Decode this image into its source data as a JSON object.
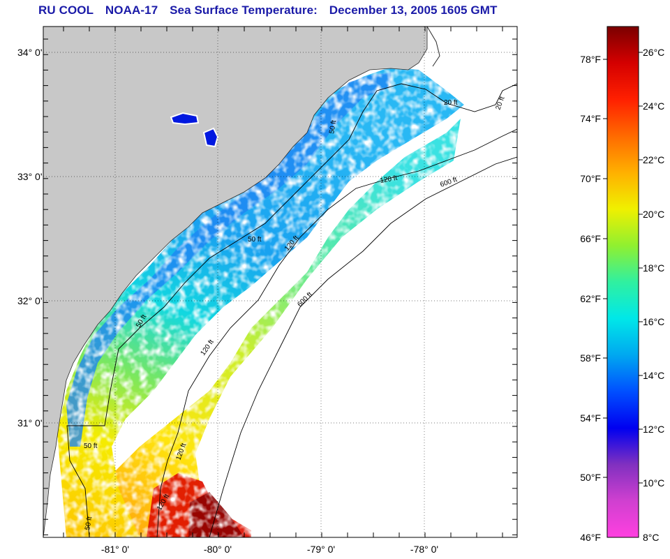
{
  "title": {
    "org": "RU COOL",
    "satellite": "NOAA-17",
    "product": "Sea Surface Temperature:",
    "datetime": "December 13, 2005 1605 GMT"
  },
  "map": {
    "lat_labels": [
      "34° 0'",
      "33° 0'",
      "32° 0'",
      "31° 0'"
    ],
    "lon_labels": [
      "-81° 0'",
      "-80° 0'",
      "-79° 0'",
      "-78° 0'"
    ],
    "contour_labels": [
      "50 ft",
      "50 ft",
      "50 ft",
      "50 ft",
      "50 ft",
      "120 ft",
      "120 ft",
      "120 ft",
      "120 ft",
      "120 ft",
      "600 ft",
      "600 ft",
      "20 ft",
      "20 ft"
    ],
    "colors": {
      "land": "#c8c8c8",
      "ocean_nodata": "#ffffff",
      "title": "#1a1aa8"
    }
  },
  "colorbar": {
    "fahrenheit_labels": [
      "78°F",
      "74°F",
      "70°F",
      "66°F",
      "62°F",
      "58°F",
      "54°F",
      "50°F",
      "46°F"
    ],
    "celsius_labels": [
      "26°C",
      "24°C",
      "22°C",
      "20°C",
      "18°C",
      "16°C",
      "14°C",
      "12°C",
      "10°C",
      "8°C"
    ],
    "color_stops": [
      "#7a0000",
      "#d40000",
      "#ff2000",
      "#ff6a00",
      "#ffb000",
      "#f0f000",
      "#90f030",
      "#30f0a0",
      "#00e8e8",
      "#00a8f0",
      "#0050ff",
      "#0000f0",
      "#8030c0",
      "#d040d0",
      "#ff40e0"
    ]
  }
}
